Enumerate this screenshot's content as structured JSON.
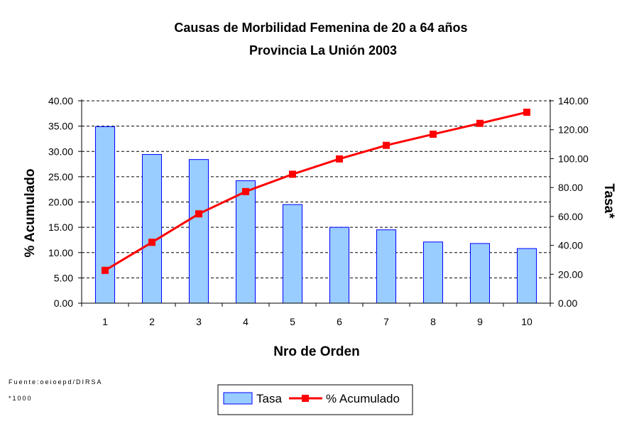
{
  "chart_data": {
    "type": "bar",
    "title": "Causas de Morbilidad Femenina de 20 a 64 años",
    "subtitle": "Provincia La Unión 2003",
    "xlabel": "Nro de Orden",
    "ylabel_left": "% Acumulado",
    "ylabel_right": "Tasa*",
    "categories": [
      "1",
      "2",
      "3",
      "4",
      "5",
      "6",
      "7",
      "8",
      "9",
      "10"
    ],
    "ylim_left": [
      0,
      40
    ],
    "ylim_right": [
      0,
      140
    ],
    "left_ticks": [
      "0.00",
      "5.00",
      "10.00",
      "15.00",
      "20.00",
      "25.00",
      "30.00",
      "35.00",
      "40.00"
    ],
    "right_ticks": [
      "0.00",
      "20.00",
      "40.00",
      "60.00",
      "80.00",
      "100.00",
      "120.00",
      "140.00"
    ],
    "grid": "horizontal-dashed",
    "legend_position": "bottom",
    "series": [
      {
        "name": "Tasa",
        "kind": "bar",
        "axis": "left",
        "color": "#99ccff",
        "values": [
          34.9,
          29.4,
          28.4,
          24.2,
          19.5,
          15.0,
          14.5,
          12.1,
          11.8,
          10.8
        ]
      },
      {
        "name": "% Acumulado",
        "kind": "line",
        "axis": "right",
        "color": "#ff0000",
        "values": [
          22.7,
          42.1,
          61.8,
          77.2,
          89.2,
          99.8,
          109.2,
          116.9,
          124.4,
          132.1
        ]
      }
    ]
  },
  "notes": {
    "source": "Fuente:oeioepd/DIRSA",
    "footnote": "*1000"
  }
}
